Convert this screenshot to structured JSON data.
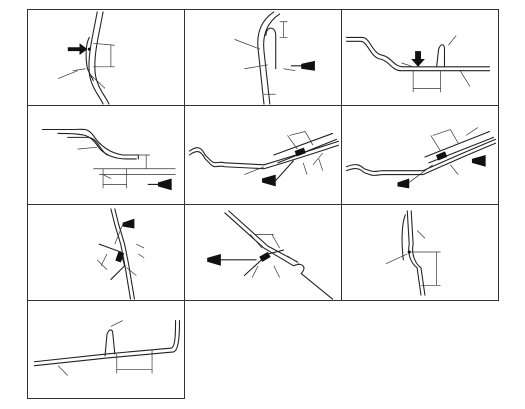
{
  "figure": {
    "panels": [
      {
        "id": "p1"
      },
      {
        "id": "p2"
      },
      {
        "id": "p3"
      },
      {
        "id": "p4"
      },
      {
        "id": "p5"
      },
      {
        "id": "p6"
      },
      {
        "id": "p7"
      },
      {
        "id": "p8"
      },
      {
        "id": "p9"
      },
      {
        "id": "p10"
      }
    ]
  },
  "colors": {
    "line": "#222222",
    "border": "#333333",
    "background": "#ffffff"
  }
}
